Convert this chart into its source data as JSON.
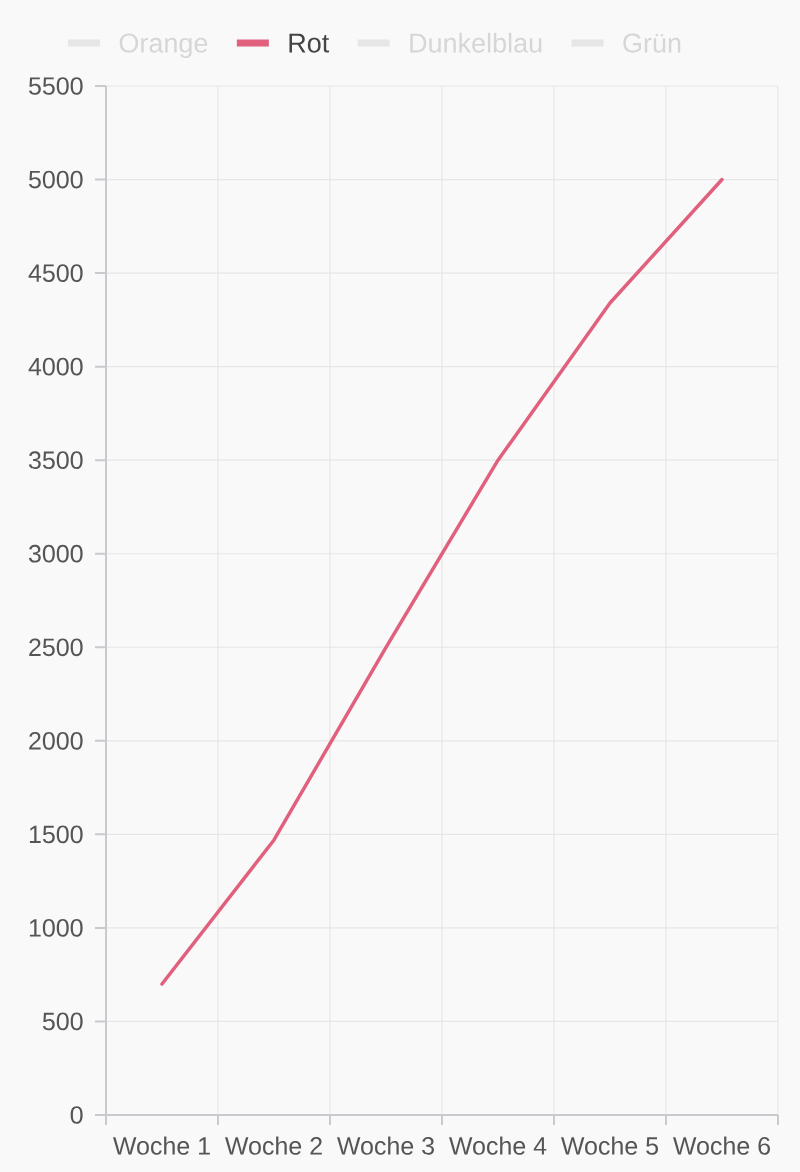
{
  "chart_data": {
    "type": "line",
    "categories": [
      "Woche 1",
      "Woche 2",
      "Woche 3",
      "Woche 4",
      "Woche 5",
      "Woche 6"
    ],
    "series": [
      {
        "name": "Orange",
        "color": "#e6e6e6",
        "values": [
          null,
          null,
          null,
          null,
          null,
          null
        ]
      },
      {
        "name": "Rot",
        "color": "#e0607e",
        "values": [
          700,
          1470,
          2500,
          3500,
          4340,
          5000
        ]
      },
      {
        "name": "Dunkelblau",
        "color": "#e6e6e6",
        "values": [
          null,
          null,
          null,
          null,
          null,
          null
        ]
      },
      {
        "name": "Grün",
        "color": "#e6e6e6",
        "values": [
          null,
          null,
          null,
          null,
          null,
          null
        ]
      }
    ],
    "ylim": [
      0,
      5500
    ],
    "yticks": [
      0,
      500,
      1000,
      1500,
      2000,
      2500,
      3000,
      3500,
      4000,
      4500,
      5000,
      5500
    ],
    "grid": true,
    "legend": "top"
  }
}
